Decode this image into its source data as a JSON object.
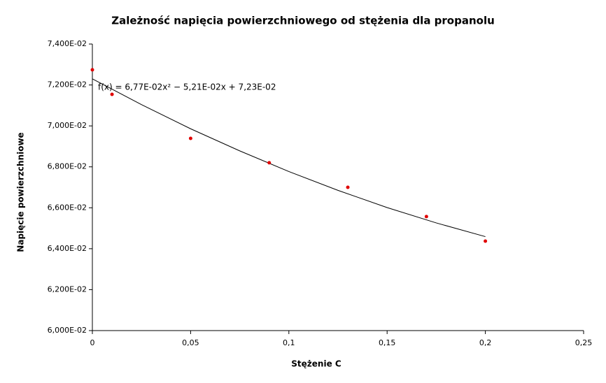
{
  "chart_data": {
    "type": "scatter",
    "title": "Zależność napięcia powierzchniowego od stężenia dla propanolu",
    "x_label": "Stężenie C",
    "y_label": "Napięcie powierzchniowe",
    "x": [
      0,
      0.01,
      0.05,
      0.09,
      0.13,
      0.17,
      0.2
    ],
    "values": [
      0.07274,
      0.07154,
      0.06939,
      0.0682,
      0.067,
      0.06557,
      0.06437
    ],
    "color": "#e00000",
    "trendline": {
      "label": "f(x) = 6,77E-02x² − 5,21E-02x + 7,23E-02",
      "x": [
        0,
        0.025,
        0.05,
        0.075,
        0.1,
        0.125,
        0.15,
        0.175,
        0.2
      ],
      "values": [
        0.0723,
        0.07104,
        0.06986,
        0.06878,
        0.06777,
        0.06685,
        0.06601,
        0.06526,
        0.06459
      ],
      "color": "#000000"
    },
    "xlim": [
      0,
      0.25
    ],
    "xticks": [
      0,
      {
        "value": 0.05,
        "label": "0,05"
      },
      {
        "value": 0.1,
        "label": "0,1"
      },
      {
        "value": 0.15,
        "label": "0,15"
      },
      {
        "value": 0.2,
        "label": "0,2"
      },
      {
        "value": 0.25,
        "label": "0,25"
      }
    ],
    "ylim": [
      0.06,
      0.074
    ],
    "yticks": [
      {
        "value": 0.06,
        "label": "6,000E-02"
      },
      {
        "value": 0.062,
        "label": "6,200E-02"
      },
      {
        "value": 0.064,
        "label": "6,400E-02"
      },
      {
        "value": 0.066,
        "label": "6,600E-02"
      },
      {
        "value": 0.068,
        "label": "6,800E-02"
      },
      {
        "value": 0.07,
        "label": "7,000E-02"
      },
      {
        "value": 0.072,
        "label": "7,200E-02"
      },
      {
        "value": 0.074,
        "label": "7,400E-02"
      }
    ],
    "grid": false
  }
}
